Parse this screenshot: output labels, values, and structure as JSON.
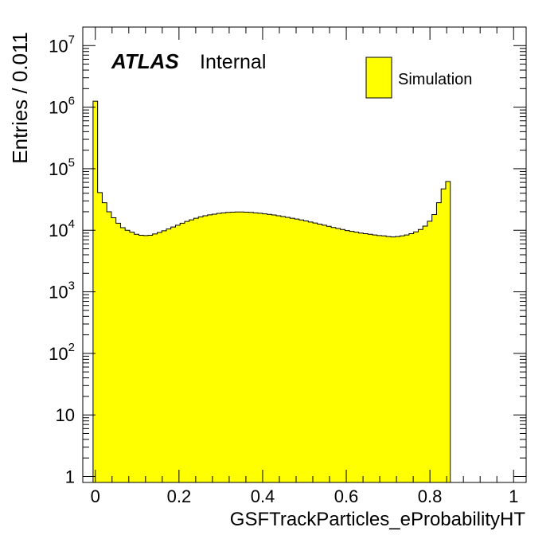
{
  "chart_data": {
    "type": "bar",
    "x_label": "GSFTrackParticles_eProbabilityHT",
    "y_label": "Entries / 0.011",
    "experiment_label": "ATLAS",
    "status_label": "Internal",
    "legend": [
      {
        "name": "Simulation",
        "color": "#ffff00",
        "edge_color": "#000000"
      }
    ],
    "legend_position": "top-right",
    "x_range": [
      -0.03,
      1.03
    ],
    "y_range": [
      0.8,
      20000000
    ],
    "y_scale": "log",
    "grid": false,
    "x_ticks": [
      {
        "value": 0,
        "label": "0"
      },
      {
        "value": 0.2,
        "label": "0.2"
      },
      {
        "value": 0.4,
        "label": "0.4"
      },
      {
        "value": 0.6,
        "label": "0.6"
      },
      {
        "value": 0.8,
        "label": "0.8"
      },
      {
        "value": 1,
        "label": "1"
      }
    ],
    "y_ticks": [
      {
        "value": 1,
        "label": "1"
      },
      {
        "value": 10,
        "label": "10"
      },
      {
        "value": 100,
        "base": "10",
        "exp": "2"
      },
      {
        "value": 1000,
        "base": "10",
        "exp": "3"
      },
      {
        "value": 10000,
        "base": "10",
        "exp": "4"
      },
      {
        "value": 100000,
        "base": "10",
        "exp": "5"
      },
      {
        "value": 1000000,
        "base": "10",
        "exp": "6"
      },
      {
        "value": 10000000,
        "base": "10",
        "exp": "7"
      }
    ],
    "bin_width": 0.01095,
    "bin_start": -0.00545,
    "bin_values": [
      1250000,
      41000,
      28000,
      20000,
      16000,
      13000,
      11000,
      10000,
      9300,
      8600,
      8300,
      8200,
      8300,
      8700,
      9200,
      9800,
      10500,
      11300,
      12100,
      13000,
      13900,
      14800,
      15700,
      16500,
      17200,
      17800,
      18300,
      18800,
      19200,
      19500,
      19700,
      19800,
      19800,
      19700,
      19500,
      19200,
      18900,
      18500,
      18100,
      17700,
      17200,
      16700,
      16200,
      15700,
      15200,
      14700,
      14200,
      13600,
      13100,
      12600,
      12100,
      11600,
      11100,
      10700,
      10300,
      9900,
      9600,
      9300,
      9000,
      8800,
      8600,
      8400,
      8200,
      8100,
      7900,
      7800,
      7900,
      8100,
      8400,
      8800,
      9400,
      10300,
      11700,
      14000,
      18000,
      28000,
      47000,
      62000
    ]
  }
}
